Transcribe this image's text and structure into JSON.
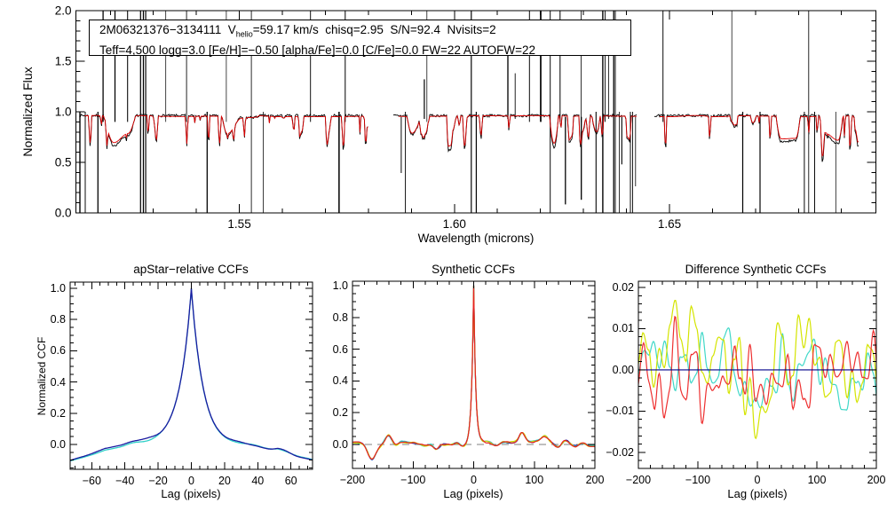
{
  "figure": {
    "background": "#ffffff",
    "kind": "astronomy spectrum + cross-correlation diagnostic plots"
  },
  "annotation": {
    "line1_prefix": "2M06321376−3134111  V",
    "line1_sub": "helio",
    "line1_suffix": "=59.17 km/s  chisq=2.95  S/N=92.4  Nvisits=2",
    "line2": "Teff=4,500 logg=3.0 [Fe/H]=−0.50 [alpha/Fe]=0.0 [C/Fe]=0.0 FW=22 AUTOFW=22"
  },
  "chart_data": [
    {
      "id": "spectrum",
      "type": "line",
      "title": "",
      "xlabel": "Wavelength (microns)",
      "ylabel": "Normalized Flux",
      "xlim": [
        1.512,
        1.698
      ],
      "ylim": [
        0.0,
        2.0
      ],
      "grid": false,
      "xticks": {
        "values": [
          1.55,
          1.6,
          1.65
        ],
        "labels": [
          "1.55",
          "1.60",
          "1.65"
        ],
        "major_step": 0.05,
        "minor_step": 0.01
      },
      "yticks": {
        "values": [
          0.0,
          0.5,
          1.0,
          1.5,
          2.0
        ],
        "labels": [
          "0.0",
          "0.5",
          "1.0",
          "1.5",
          "2.0"
        ],
        "major_step": 0.5,
        "minor_step": 0.1
      },
      "segments_microns": [
        [
          1.5128,
          1.58
        ],
        [
          1.5858,
          1.6424
        ],
        [
          1.6465,
          1.694
        ]
      ],
      "detector_gaps_microns": [
        [
          1.58,
          1.5858
        ],
        [
          1.6424,
          1.6465
        ]
      ],
      "series": [
        {
          "name": "observed-spectrum",
          "color": "#000000",
          "continuum": 0.96,
          "noise_amp": 0.013,
          "seed": 101,
          "cosmic_ray_spikes": 56,
          "spikes_clipped_at": [
            0.0,
            2.0
          ]
        },
        {
          "name": "model-spectrum",
          "color": "#dd0000",
          "continuum": 0.957,
          "seed": 103,
          "note": "red best-fit synthetic overlay with absorption lines to ~0.55"
        }
      ]
    },
    {
      "id": "apstar-ccf",
      "type": "line",
      "title": "apStar−relative CCFs",
      "xlabel": "Lag (pixels)",
      "ylabel": "Normalized CCF",
      "xlim": [
        -73,
        73
      ],
      "ylim": [
        -0.159,
        1.04
      ],
      "grid": false,
      "xticks": {
        "values": [
          -60,
          -40,
          -20,
          0,
          20,
          40,
          60
        ],
        "labels": [
          "−60",
          "−40",
          "−20",
          "0",
          "20",
          "40",
          "60"
        ],
        "major_step": 20,
        "minor_step": 5
      },
      "yticks": {
        "values": [
          0.0,
          0.2,
          0.4,
          0.6,
          0.8,
          1.0
        ],
        "labels": [
          "0.0",
          "0.2",
          "0.4",
          "0.6",
          "0.8",
          "1.0"
        ],
        "major_step": 0.2,
        "minor_step": 0.05
      },
      "peak": {
        "lag": 0,
        "height": 1.0,
        "half_width_lag": 5.5
      },
      "baseline": {
        "edge_value_at_minus73": -0.07,
        "min_value": -0.09,
        "shoulder_bump_at": 32
      },
      "series": [
        {
          "name": "ccf-visit",
          "color": "#2fd0c8",
          "seed": 22
        },
        {
          "name": "ccf-combined",
          "color": "#1a1aa0",
          "seed": 21
        }
      ]
    },
    {
      "id": "synthetic-ccf",
      "type": "line",
      "title": "Synthetic CCFs",
      "xlabel": "Lag (pixels)",
      "ylim": [
        -0.151,
        1.028
      ],
      "xlim": [
        -200,
        200
      ],
      "grid": false,
      "xticks": {
        "values": [
          -200,
          -100,
          0,
          100,
          200
        ],
        "labels": [
          "−200",
          "−100",
          "0",
          "100",
          "200"
        ],
        "major_step": 100,
        "minor_step": 20
      },
      "yticks": {
        "values": [
          0.0,
          0.2,
          0.4,
          0.6,
          0.8,
          1.0
        ],
        "labels": [
          "0.0",
          "0.2",
          "0.4",
          "0.6",
          "0.8",
          "1.0"
        ],
        "major_step": 0.2,
        "minor_step": 0.05
      },
      "peak": {
        "lag": 0,
        "height": 1.0,
        "half_width_lag": 2.5
      },
      "zero_line": {
        "style": "dashed",
        "color": "#999999",
        "value": 0.0
      },
      "baseline_features": [
        {
          "lag": -140,
          "amp": 0.065,
          "sigma": 6
        },
        {
          "lag": -167,
          "amp": -0.075,
          "sigma": 7
        },
        {
          "lag": -62,
          "amp": -0.035,
          "sigma": 5
        },
        {
          "lag": 80,
          "amp": 0.062,
          "sigma": 5
        },
        {
          "lag": 117,
          "amp": 0.045,
          "sigma": 6
        },
        {
          "lag": 152,
          "amp": 0.04,
          "sigma": 6
        }
      ],
      "series": [
        {
          "name": "synth-ccf-combined",
          "color": "#1a1aa0",
          "seed": 32
        },
        {
          "name": "synth-ccf-visit-1",
          "color": "#2fd0c8",
          "seed": 33
        },
        {
          "name": "synth-ccf-visit-2",
          "color": "#ccdd00",
          "seed": 34
        },
        {
          "name": "synth-ccf-best",
          "color": "#e82020",
          "seed": 35
        }
      ]
    },
    {
      "id": "difference-ccf",
      "type": "line",
      "title": "Difference Synthetic CCFs",
      "xlabel": "Lag (pixels)",
      "xlim": [
        -200,
        200
      ],
      "ylim": [
        -0.0239,
        0.0215
      ],
      "grid": false,
      "xticks": {
        "values": [
          -200,
          -100,
          0,
          100,
          200
        ],
        "labels": [
          "−200",
          "−100",
          "0",
          "100",
          "200"
        ],
        "major_step": 100,
        "minor_step": 20
      },
      "yticks": {
        "values": [
          -0.02,
          -0.01,
          0.0,
          0.01,
          0.02
        ],
        "labels": [
          "−0.02",
          "−0.01",
          "0.00",
          "0.01",
          "0.02"
        ],
        "major_step": 0.01,
        "minor_step": 0.002
      },
      "zero_line": {
        "style": "solid",
        "color": "#00008b",
        "value": 0.0
      },
      "series": [
        {
          "name": "diff-ccf-visit-1",
          "color": "#40d8c8",
          "seed": 41,
          "amp": 0.01,
          "flat": false
        },
        {
          "name": "diff-ccf-visit-2",
          "color": "#d4e400",
          "seed": 42,
          "amp": 0.015,
          "flat": false
        },
        {
          "name": "diff-ccf-best",
          "color": "#ee3030",
          "seed": 43,
          "amp": 0.013,
          "flat": false
        },
        {
          "name": "diff-ccf-reference",
          "color": "#00008b",
          "seed": 44,
          "amp": 0.0,
          "flat": true
        }
      ]
    }
  ]
}
